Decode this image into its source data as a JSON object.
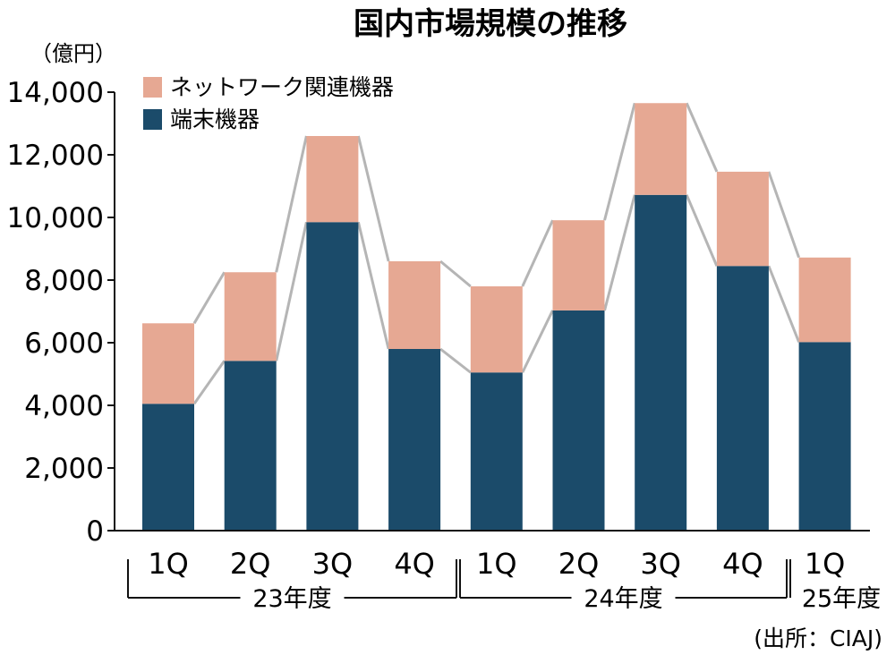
{
  "chart_data": {
    "type": "bar",
    "stacked": true,
    "title": "国内市場規模の推移",
    "unit_label": "（億円）",
    "source": "(出所：CIAJ)",
    "categories": [
      "1Q",
      "2Q",
      "3Q",
      "4Q",
      "1Q",
      "2Q",
      "3Q",
      "4Q",
      "1Q"
    ],
    "year_groups": [
      {
        "label": "23年度",
        "count": 4
      },
      {
        "label": "24年度",
        "count": 4
      },
      {
        "label": "25年度",
        "count": 1
      }
    ],
    "series": [
      {
        "name": "端末機器",
        "color": "#1b4b6a",
        "values": [
          4050,
          5420,
          9850,
          5800,
          5050,
          7030,
          10720,
          8450,
          6020
        ]
      },
      {
        "name": "ネットワーク関連機器",
        "color": "#e6a893",
        "values": [
          2570,
          2830,
          2750,
          2800,
          2750,
          2880,
          2930,
          3010,
          2700
        ]
      }
    ],
    "ylim": [
      0,
      14000
    ],
    "yticks": [
      "0",
      "2,000",
      "4,000",
      "6,000",
      "8,000",
      "10,000",
      "12,000",
      "14,000"
    ],
    "legend_position": "top-left",
    "connector_lines": true,
    "grid": false
  }
}
